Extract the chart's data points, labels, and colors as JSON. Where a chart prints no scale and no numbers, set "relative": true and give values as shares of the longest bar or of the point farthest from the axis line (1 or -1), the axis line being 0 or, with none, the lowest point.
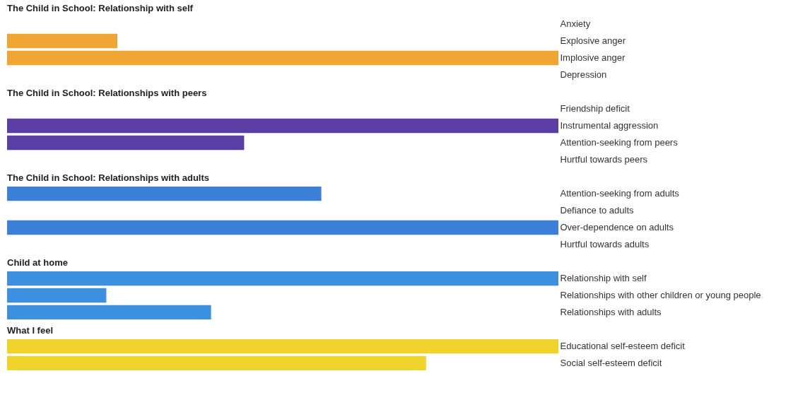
{
  "chart_data": [
    {
      "type": "bar",
      "orientation": "horizontal",
      "relative": true,
      "title": "The Child in School: Relationship with self",
      "categories": [
        "Anxiety",
        "Explosive anger",
        "Implosive anger",
        "Depression"
      ],
      "values": [
        0,
        0.2,
        1,
        0
      ],
      "color": "#f0a634"
    },
    {
      "type": "bar",
      "orientation": "horizontal",
      "relative": true,
      "title": "The Child in School: Relationships with peers",
      "categories": [
        "Friendship deficit",
        "Instrumental aggression",
        "Attention-seeking from peers",
        "Hurtful towards peers"
      ],
      "values": [
        0,
        1,
        0.43,
        0
      ],
      "color": "#5a3ea3"
    },
    {
      "type": "bar",
      "orientation": "horizontal",
      "relative": true,
      "title": "The Child in School: Relationships with adults",
      "categories": [
        "Attention-seeking from adults",
        "Defiance to adults",
        "Over-dependence on adults",
        "Hurtful towards adults"
      ],
      "values": [
        0.57,
        0,
        1,
        0
      ],
      "color": "#3b7fd6"
    },
    {
      "type": "bar",
      "orientation": "horizontal",
      "relative": true,
      "title": "Child at home",
      "categories": [
        "Relationship with self",
        "Relationships with other children or young people",
        "Relationships with adults"
      ],
      "values": [
        1,
        0.18,
        0.37
      ],
      "color": "#3d8fe0"
    },
    {
      "type": "bar",
      "orientation": "horizontal",
      "relative": true,
      "title": "What I feel",
      "categories": [
        "Educational self-esteem deficit",
        "Social self-esteem deficit"
      ],
      "values": [
        1,
        0.76
      ],
      "color": "#f0d42c"
    }
  ]
}
